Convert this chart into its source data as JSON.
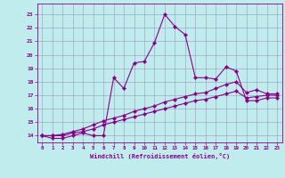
{
  "xlabel": "Windchill (Refroidissement éolien,°C)",
  "bg_color": "#c0ecee",
  "grid_color": "#9999bb",
  "line_color": "#880088",
  "xlim": [
    -0.5,
    23.5
  ],
  "ylim": [
    13.5,
    23.8
  ],
  "xticks": [
    0,
    1,
    2,
    3,
    4,
    5,
    6,
    7,
    8,
    9,
    10,
    11,
    12,
    13,
    14,
    15,
    16,
    17,
    18,
    19,
    20,
    21,
    22,
    23
  ],
  "yticks": [
    14,
    15,
    16,
    17,
    18,
    19,
    20,
    21,
    22,
    23
  ],
  "series": [
    [
      14.0,
      13.8,
      13.8,
      14.0,
      14.2,
      14.0,
      14.0,
      18.3,
      17.5,
      19.4,
      19.5,
      20.9,
      23.0,
      22.1,
      21.5,
      18.3,
      18.3,
      18.2,
      19.1,
      18.8,
      16.6,
      16.6,
      16.8,
      16.8
    ],
    [
      14.0,
      14.0,
      14.1,
      14.3,
      14.5,
      14.8,
      15.1,
      15.3,
      15.5,
      15.8,
      16.0,
      16.2,
      16.5,
      16.7,
      16.9,
      17.1,
      17.2,
      17.5,
      17.8,
      18.0,
      17.2,
      17.4,
      17.1,
      17.1
    ],
    [
      14.0,
      14.0,
      14.0,
      14.2,
      14.3,
      14.5,
      14.8,
      15.0,
      15.2,
      15.4,
      15.6,
      15.8,
      16.0,
      16.2,
      16.4,
      16.6,
      16.7,
      16.9,
      17.1,
      17.3,
      16.8,
      16.9,
      17.0,
      17.0
    ]
  ]
}
